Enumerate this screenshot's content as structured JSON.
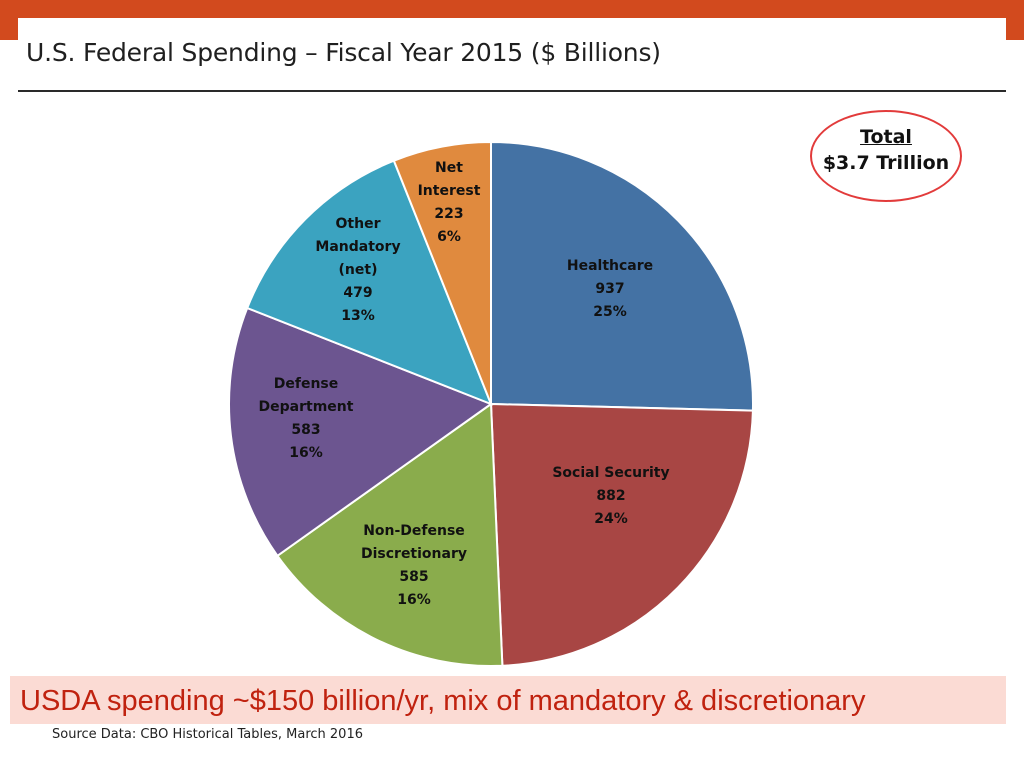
{
  "slide": {
    "title": "U.S. Federal Spending – Fiscal Year 2015 ($ Billions)",
    "total_heading": "Total",
    "total_value": "$3.7 Trillion",
    "callout": "USDA spending ~$150 billion/yr, mix of mandatory & discretionary",
    "source": "Source Data:  CBO Historical Tables, March 2016"
  },
  "chart_data": {
    "type": "pie",
    "title": "U.S. Federal Spending – Fiscal Year 2015 ($ Billions)",
    "start_angle_deg": 0,
    "direction": "clockwise",
    "slices": [
      {
        "label_lines": [
          "Healthcare"
        ],
        "value": 937,
        "value_text": "937",
        "percent_text": "25%",
        "color": "#4472a4"
      },
      {
        "label_lines": [
          "Social Security"
        ],
        "value": 882,
        "value_text": "882",
        "percent_text": "24%",
        "color": "#a84644"
      },
      {
        "label_lines": [
          "Non-Defense",
          "Discretionary"
        ],
        "value": 585,
        "value_text": "585",
        "percent_text": "16%",
        "color": "#8aac4c"
      },
      {
        "label_lines": [
          "Defense",
          "Department"
        ],
        "value": 583,
        "value_text": "583",
        "percent_text": "16%",
        "color": "#6c5590"
      },
      {
        "label_lines": [
          "Other",
          "Mandatory",
          "(net)"
        ],
        "value": 479,
        "value_text": "479",
        "percent_text": "13%",
        "color": "#3ba3c0"
      },
      {
        "label_lines": [
          "Net",
          "Interest"
        ],
        "value": 223,
        "value_text": "223",
        "percent_text": "6%",
        "color": "#e08a3e"
      }
    ]
  }
}
